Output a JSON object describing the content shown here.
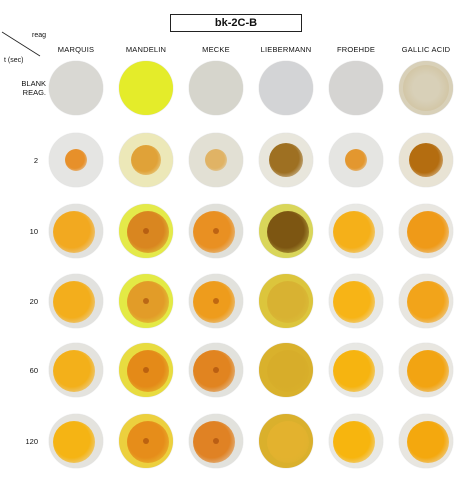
{
  "title": "bk-2C-B",
  "corner": {
    "reagent_label": "reag",
    "time_label": "t (sec)"
  },
  "columns": [
    "MARQUIS",
    "MANDELIN",
    "MECKE",
    "LIEBERMANN",
    "FROEHDE",
    "GALLIC ACID"
  ],
  "rows": [
    {
      "label": "BLANK\nREAG.",
      "dishes": [
        {
          "bg": "#d9d8d3",
          "stain": null
        },
        {
          "bg": "#e4ec2a",
          "stain": null
        },
        {
          "bg": "#d6d5cc",
          "stain": null
        },
        {
          "bg": "#d3d4d6",
          "stain": null
        },
        {
          "bg": "#d5d4d2",
          "stain": null
        },
        {
          "bg": "#d8d0b8",
          "stain": "#cdbd95"
        }
      ]
    },
    {
      "label": "2",
      "dishes": [
        {
          "bg": "#e5e5e3",
          "stain": "#e7902a"
        },
        {
          "bg": "#ece8b8",
          "stain": "#e0a238"
        },
        {
          "bg": "#e2e0d4",
          "stain": "#e0b365"
        },
        {
          "bg": "#e8e6dc",
          "stain": "#9e7022"
        },
        {
          "bg": "#e5e5e2",
          "stain": "#e3972f"
        },
        {
          "bg": "#e8e3d4",
          "stain": "#b46d10"
        }
      ]
    },
    {
      "label": "10",
      "dishes": [
        {
          "bg": "#e2e2df",
          "stain": "#f2a920"
        },
        {
          "bg": "#e4ea4a",
          "stain": "#d98620"
        },
        {
          "bg": "#e0e0da",
          "stain": "#e99022"
        },
        {
          "bg": "#d9d65a",
          "stain": "#7d5612"
        },
        {
          "bg": "#e8e8e4",
          "stain": "#f5b019"
        },
        {
          "bg": "#e8e6e0",
          "stain": "#ef9a18"
        }
      ]
    },
    {
      "label": "20",
      "dishes": [
        {
          "bg": "#e2e2df",
          "stain": "#f3ae1c"
        },
        {
          "bg": "#e3ea45",
          "stain": "#e29c28"
        },
        {
          "bg": "#e2e2dd",
          "stain": "#ee9c1c"
        },
        {
          "bg": "#dcc53c",
          "stain": "#d8b232"
        },
        {
          "bg": "#e8e8e4",
          "stain": "#f7b416"
        },
        {
          "bg": "#e8e6e0",
          "stain": "#f2a41a"
        }
      ]
    },
    {
      "label": "60",
      "dishes": [
        {
          "bg": "#e4e3de",
          "stain": "#f3b01a"
        },
        {
          "bg": "#e8dc40",
          "stain": "#e48a18"
        },
        {
          "bg": "#e2e2dd",
          "stain": "#e18420"
        },
        {
          "bg": "#d9b12c",
          "stain": "#d7ad2a"
        },
        {
          "bg": "#e8e8e4",
          "stain": "#f6b410"
        },
        {
          "bg": "#e8e6e0",
          "stain": "#f2a412"
        }
      ]
    },
    {
      "label": "120",
      "dishes": [
        {
          "bg": "#e4e3de",
          "stain": "#f5b414"
        },
        {
          "bg": "#ecd03e",
          "stain": "#e68d1a"
        },
        {
          "bg": "#e2e2dd",
          "stain": "#e08224"
        },
        {
          "bg": "#dab02c",
          "stain": "#e3b22e"
        },
        {
          "bg": "#e8e8e4",
          "stain": "#f7b50e"
        },
        {
          "bg": "#e8e6e0",
          "stain": "#f4a80e"
        }
      ]
    }
  ]
}
